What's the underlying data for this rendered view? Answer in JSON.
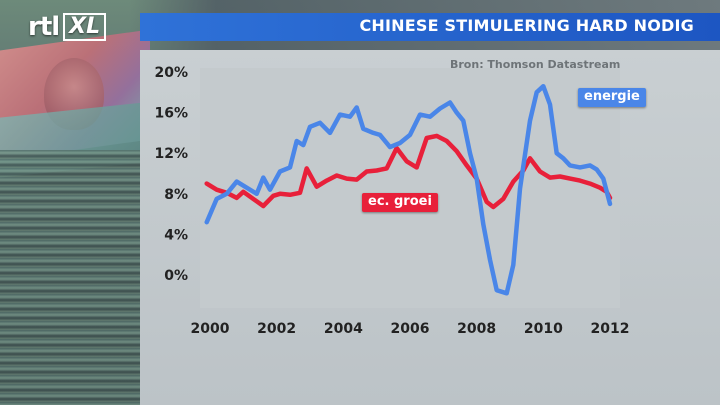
{
  "header": {
    "logo_main": "rtl",
    "logo_sub": "XL",
    "title": "CHINESE STIMULERING HARD NODIG"
  },
  "source": "Bron: Thomson Datastream",
  "colors": {
    "title_bar": "#1d56c2",
    "energie": "#4a86e8",
    "groei": "#e8203a"
  },
  "chart_data": {
    "type": "line",
    "title": "CHINESE STIMULERING HARD NODIG",
    "xlim": [
      1999.7,
      2012.3
    ],
    "ylim": [
      -3,
      20
    ],
    "x_ticks": [
      {
        "value": 2000,
        "label": "2000"
      },
      {
        "value": 2002,
        "label": "2002"
      },
      {
        "value": 2004,
        "label": "2004"
      },
      {
        "value": 2006,
        "label": "2006"
      },
      {
        "value": 2008,
        "label": "2008"
      },
      {
        "value": 2010,
        "label": "2010"
      },
      {
        "value": 2012,
        "label": "2012"
      }
    ],
    "y_ticks": [
      {
        "value": 0,
        "label": "0%"
      },
      {
        "value": 4,
        "label": "4%"
      },
      {
        "value": 8,
        "label": "8%"
      },
      {
        "value": 12,
        "label": "12%"
      },
      {
        "value": 16,
        "label": "16%"
      },
      {
        "value": 20,
        "label": "20%"
      }
    ],
    "series": [
      {
        "name": "ec. groei",
        "color": "#e8203a",
        "points": [
          [
            1999.9,
            9.0
          ],
          [
            2000.2,
            8.4
          ],
          [
            2000.5,
            8.1
          ],
          [
            2000.8,
            7.6
          ],
          [
            2001.0,
            8.2
          ],
          [
            2001.3,
            7.5
          ],
          [
            2001.6,
            6.8
          ],
          [
            2001.9,
            7.8
          ],
          [
            2002.1,
            8.0
          ],
          [
            2002.4,
            7.9
          ],
          [
            2002.7,
            8.1
          ],
          [
            2002.9,
            10.5
          ],
          [
            2003.2,
            8.7
          ],
          [
            2003.5,
            9.3
          ],
          [
            2003.8,
            9.8
          ],
          [
            2004.1,
            9.5
          ],
          [
            2004.4,
            9.4
          ],
          [
            2004.7,
            10.2
          ],
          [
            2005.0,
            10.3
          ],
          [
            2005.3,
            10.5
          ],
          [
            2005.6,
            12.5
          ],
          [
            2005.9,
            11.2
          ],
          [
            2006.2,
            10.6
          ],
          [
            2006.5,
            13.5
          ],
          [
            2006.8,
            13.7
          ],
          [
            2007.1,
            13.2
          ],
          [
            2007.4,
            12.2
          ],
          [
            2007.7,
            10.8
          ],
          [
            2008.0,
            9.5
          ],
          [
            2008.3,
            7.2
          ],
          [
            2008.5,
            6.7
          ],
          [
            2008.8,
            7.5
          ],
          [
            2009.1,
            9.2
          ],
          [
            2009.4,
            10.3
          ],
          [
            2009.6,
            11.5
          ],
          [
            2009.9,
            10.2
          ],
          [
            2010.2,
            9.6
          ],
          [
            2010.5,
            9.7
          ],
          [
            2010.8,
            9.5
          ],
          [
            2011.1,
            9.3
          ],
          [
            2011.4,
            9.0
          ],
          [
            2011.7,
            8.6
          ],
          [
            2011.9,
            8.2
          ],
          [
            2012.0,
            7.6
          ]
        ]
      },
      {
        "name": "energie",
        "color": "#4a86e8",
        "points": [
          [
            1999.9,
            5.2
          ],
          [
            2000.2,
            7.5
          ],
          [
            2000.5,
            8.0
          ],
          [
            2000.8,
            9.2
          ],
          [
            2001.1,
            8.6
          ],
          [
            2001.4,
            8.0
          ],
          [
            2001.6,
            9.6
          ],
          [
            2001.8,
            8.4
          ],
          [
            2002.1,
            10.2
          ],
          [
            2002.4,
            10.6
          ],
          [
            2002.6,
            13.2
          ],
          [
            2002.8,
            12.8
          ],
          [
            2003.0,
            14.6
          ],
          [
            2003.3,
            15.0
          ],
          [
            2003.6,
            14.0
          ],
          [
            2003.9,
            15.8
          ],
          [
            2004.2,
            15.6
          ],
          [
            2004.4,
            16.5
          ],
          [
            2004.6,
            14.4
          ],
          [
            2004.9,
            14.0
          ],
          [
            2005.1,
            13.8
          ],
          [
            2005.4,
            12.6
          ],
          [
            2005.7,
            13.0
          ],
          [
            2006.0,
            13.8
          ],
          [
            2006.3,
            15.8
          ],
          [
            2006.6,
            15.6
          ],
          [
            2006.9,
            16.4
          ],
          [
            2007.2,
            17.0
          ],
          [
            2007.4,
            16.0
          ],
          [
            2007.6,
            15.2
          ],
          [
            2007.8,
            12.0
          ],
          [
            2008.0,
            9.5
          ],
          [
            2008.2,
            5.0
          ],
          [
            2008.4,
            1.5
          ],
          [
            2008.6,
            -1.5
          ],
          [
            2008.9,
            -1.8
          ],
          [
            2009.1,
            1.0
          ],
          [
            2009.3,
            8.5
          ],
          [
            2009.6,
            15.2
          ],
          [
            2009.8,
            18.0
          ],
          [
            2010.0,
            18.6
          ],
          [
            2010.2,
            16.8
          ],
          [
            2010.4,
            12.0
          ],
          [
            2010.6,
            11.5
          ],
          [
            2010.8,
            10.8
          ],
          [
            2011.1,
            10.6
          ],
          [
            2011.4,
            10.8
          ],
          [
            2011.6,
            10.4
          ],
          [
            2011.8,
            9.5
          ],
          [
            2012.0,
            7.0
          ]
        ]
      }
    ],
    "labels": [
      {
        "series": "energie",
        "text": "energie"
      },
      {
        "series": "ec. groei",
        "text": "ec. groei"
      }
    ],
    "grid": false
  }
}
